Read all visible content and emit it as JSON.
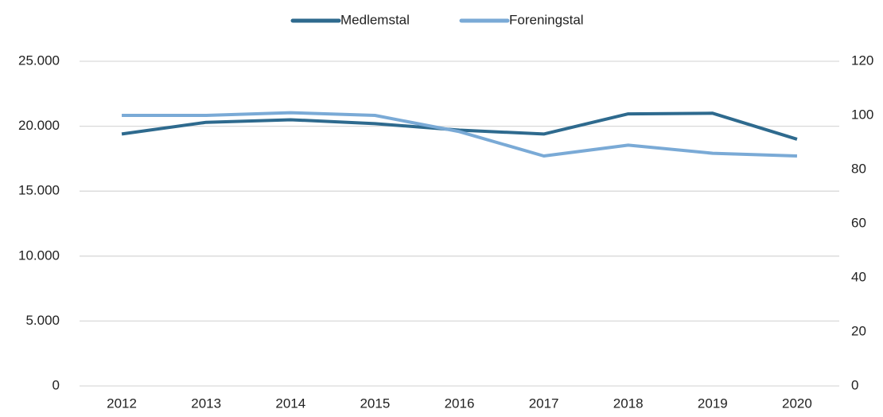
{
  "chart_data": {
    "type": "line",
    "categories": [
      "2012",
      "2013",
      "2014",
      "2015",
      "2016",
      "2017",
      "2018",
      "2019",
      "2020"
    ],
    "series": [
      {
        "name": "Medlemstal",
        "color": "#2e6a8e",
        "values": [
          19400,
          20300,
          20500,
          20200,
          19700,
          19400,
          20950,
          21000,
          19000
        ]
      },
      {
        "name": "Foreningstal",
        "color": "#7aaad6",
        "axis": "y2",
        "values": [
          100,
          100,
          101,
          100,
          94,
          85,
          89,
          86,
          85
        ]
      }
    ],
    "ylim": [
      0,
      25000
    ],
    "yticks": [
      0,
      {
        "value": 5000,
        "label": "5.000"
      },
      {
        "value": 10000,
        "label": "10.000"
      },
      {
        "value": 15000,
        "label": "15.000"
      },
      {
        "value": 20000,
        "label": "20.000"
      },
      {
        "value": 25000,
        "label": "25.000"
      }
    ],
    "y2lim": [
      0,
      120
    ],
    "y2ticks": [
      0,
      20,
      40,
      60,
      80,
      100,
      120
    ],
    "grid": true,
    "legend": "top"
  }
}
